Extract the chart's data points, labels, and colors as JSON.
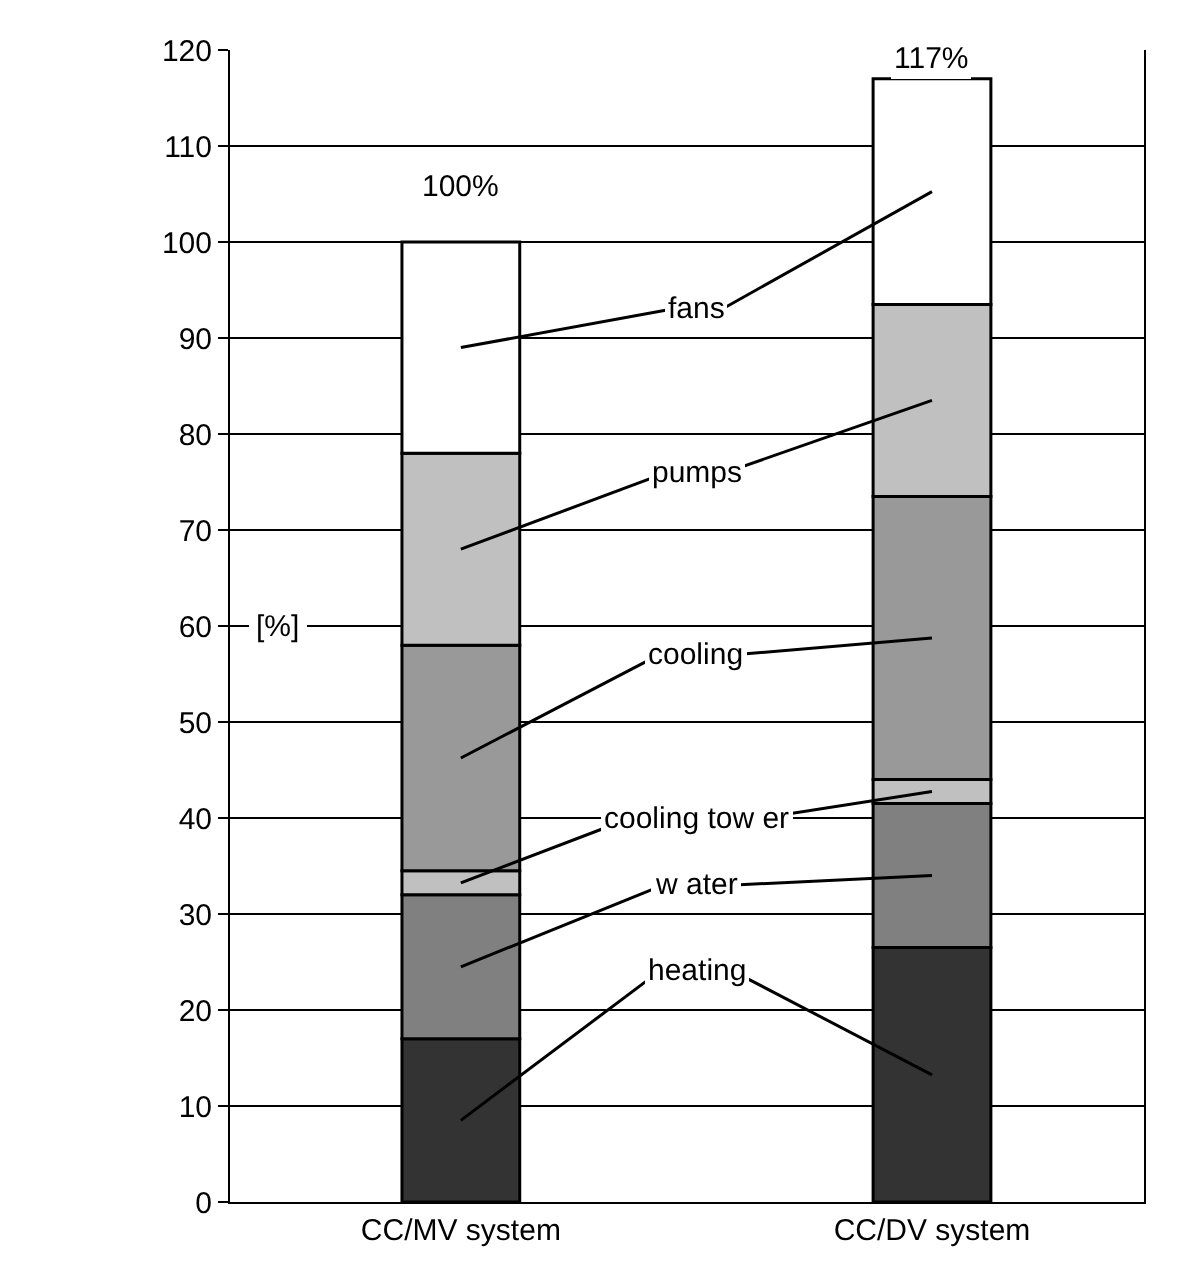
{
  "chart_data": {
    "type": "bar",
    "stacked": true,
    "ylabel": "[%]",
    "categories": [
      "CC/MV system",
      "CC/DV system"
    ],
    "series": [
      {
        "name": "heating",
        "color": "#333333",
        "values": [
          17,
          26.5
        ]
      },
      {
        "name": "w ater",
        "color": "#808080",
        "values": [
          15,
          15
        ]
      },
      {
        "name": "cooling tow er",
        "color": "#c0c0c0",
        "values": [
          2.5,
          2.5
        ]
      },
      {
        "name": "cooling",
        "color": "#999999",
        "values": [
          23.5,
          29.5
        ]
      },
      {
        "name": "pumps",
        "color": "#c0c0c0",
        "values": [
          20,
          20
        ]
      },
      {
        "name": "fans",
        "color": "#ffffff",
        "values": [
          22,
          23.5
        ]
      }
    ],
    "totals": [
      "100%",
      "117%"
    ],
    "ylim": [
      0,
      120
    ],
    "yticks": [
      0,
      10,
      20,
      30,
      40,
      50,
      60,
      70,
      80,
      90,
      100,
      110,
      120
    ],
    "grid": "y",
    "legend": false
  }
}
